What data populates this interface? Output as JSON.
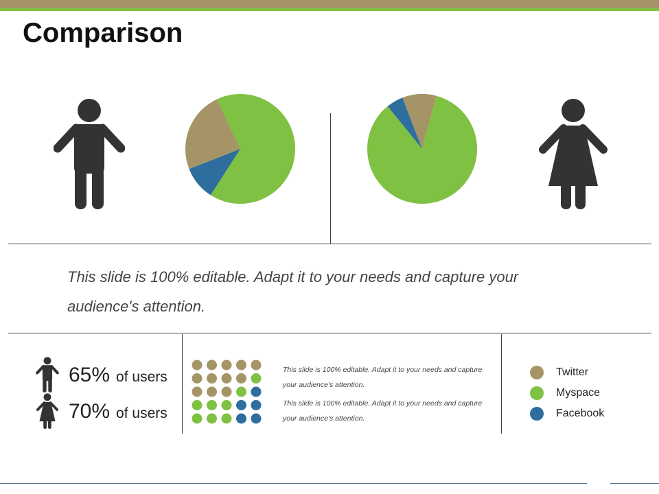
{
  "title": "Comparison",
  "colors": {
    "twitter": "#a59466",
    "myspace": "#7fc142",
    "facebook": "#2e6e9e",
    "figure": "#333333",
    "top_bar": "#a59466",
    "top_accent": "#7fc142"
  },
  "icons": {
    "male": "male-figure-icon",
    "female": "female-figure-icon"
  },
  "chart_data": [
    {
      "type": "pie",
      "slices": [
        {
          "category": "Myspace",
          "value": 66
        },
        {
          "category": "Facebook",
          "value": 10
        },
        {
          "category": "Twitter",
          "value": 24
        }
      ]
    },
    {
      "type": "pie",
      "slices": [
        {
          "category": "Myspace",
          "value": 85
        },
        {
          "category": "Facebook",
          "value": 5
        },
        {
          "category": "Twitter",
          "value": 10
        }
      ]
    },
    {
      "type": "dot-grid",
      "columns": 5,
      "rows": [
        [
          "Twitter",
          "Twitter",
          "Twitter",
          "Twitter",
          "Twitter"
        ],
        [
          "Twitter",
          "Twitter",
          "Twitter",
          "Twitter",
          "Myspace"
        ],
        [
          "Twitter",
          "Twitter",
          "Twitter",
          "Myspace",
          "Facebook"
        ],
        [
          "Myspace",
          "Myspace",
          "Myspace",
          "Facebook",
          "Facebook"
        ],
        [
          "Myspace",
          "Myspace",
          "Myspace",
          "Facebook",
          "Facebook"
        ]
      ]
    }
  ],
  "body_text": "This slide is 100% editable. Adapt it to your needs and capture your audience's attention.",
  "stats": [
    {
      "percent": "65%",
      "label": "of users",
      "icon": "male-figure-icon"
    },
    {
      "percent": "70%",
      "label": "of users",
      "icon": "female-figure-icon"
    }
  ],
  "small_texts": [
    "This slide is 100% editable. Adapt it to your needs and capture your audience's attention.",
    "This slide is 100% editable. Adapt it to your needs and capture your audience's attention."
  ],
  "legend": [
    {
      "label": "Twitter",
      "color": "#a59466"
    },
    {
      "label": "Myspace",
      "color": "#7fc142"
    },
    {
      "label": "Facebook",
      "color": "#2e6e9e"
    }
  ]
}
